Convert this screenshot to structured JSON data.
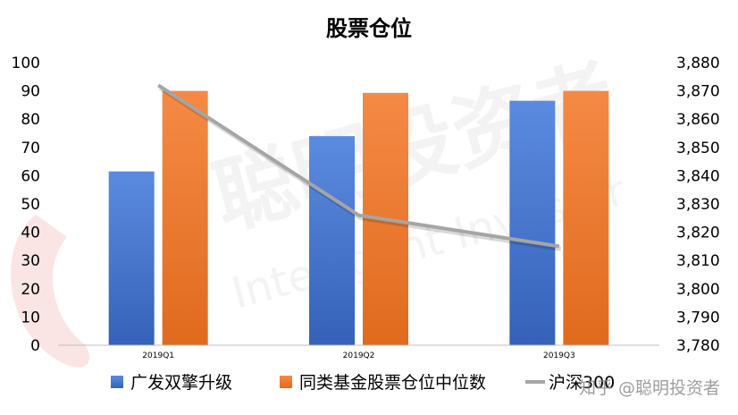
{
  "watermark": {
    "cn": "聪明投资者",
    "en": "Intelligent Investor",
    "corner": "知乎 @聪明投资者"
  },
  "chart_data": {
    "type": "bar",
    "title": "股票仓位",
    "categories": [
      "2019Q1",
      "2019Q2",
      "2019Q3"
    ],
    "y_left": {
      "ylim": [
        0,
        100
      ],
      "ticks": [
        "0",
        "10",
        "20",
        "30",
        "40",
        "50",
        "60",
        "70",
        "80",
        "90",
        "100"
      ]
    },
    "y_right": {
      "ylim": [
        3780,
        3880
      ],
      "ticks": [
        "3,780",
        "3,790",
        "3,800",
        "3,810",
        "3,820",
        "3,830",
        "3,840",
        "3,850",
        "3,860",
        "3,870",
        "3,880"
      ]
    },
    "series": [
      {
        "name": "广发双擎升级",
        "type": "bar",
        "axis": "left",
        "color": "#4472C4",
        "values": [
          61.5,
          74,
          86.5
        ]
      },
      {
        "name": "同类基金股票仓位中位数",
        "type": "bar",
        "axis": "left",
        "color": "#ED7D31",
        "values": [
          90,
          89.3,
          90
        ]
      },
      {
        "name": "沪深300",
        "type": "line",
        "axis": "right",
        "color": "#A5A5A5",
        "values": [
          3872,
          3826,
          3815
        ]
      }
    ],
    "legend_position": "bottom",
    "grid": false
  }
}
